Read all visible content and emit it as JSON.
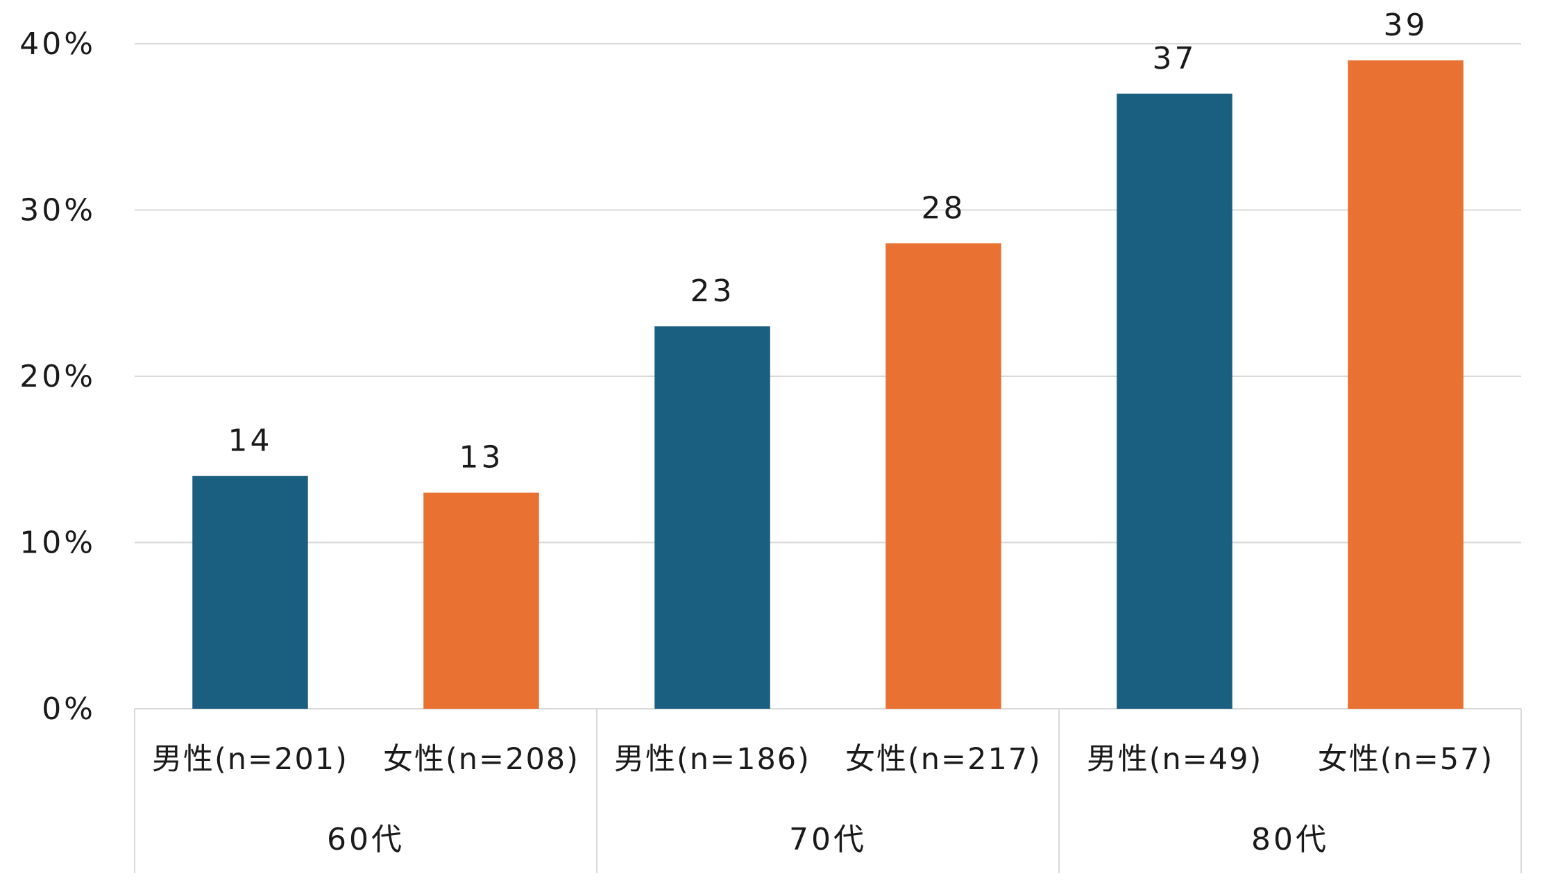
{
  "chart_data": {
    "type": "bar",
    "y_ticks": [
      "0%",
      "10%",
      "20%",
      "30%",
      "40%"
    ],
    "ylim": [
      0,
      40
    ],
    "grid": true,
    "groups": [
      {
        "label": "60代",
        "bars": [
          {
            "category": "男性(n=201)",
            "value": 14,
            "label": "14",
            "color": "#1a5f80"
          },
          {
            "category": "女性(n=208)",
            "value": 13,
            "label": "13",
            "color": "#e97132"
          }
        ]
      },
      {
        "label": "70代",
        "bars": [
          {
            "category": "男性(n=186)",
            "value": 23,
            "label": "23",
            "color": "#1a5f80"
          },
          {
            "category": "女性(n=217)",
            "value": 28,
            "label": "28",
            "color": "#e97132"
          }
        ]
      },
      {
        "label": "80代",
        "bars": [
          {
            "category": "男性(n=49)",
            "value": 37,
            "label": "37",
            "color": "#1a5f80"
          },
          {
            "category": "女性(n=57)",
            "value": 39,
            "label": "39",
            "color": "#e97132"
          }
        ]
      }
    ]
  }
}
